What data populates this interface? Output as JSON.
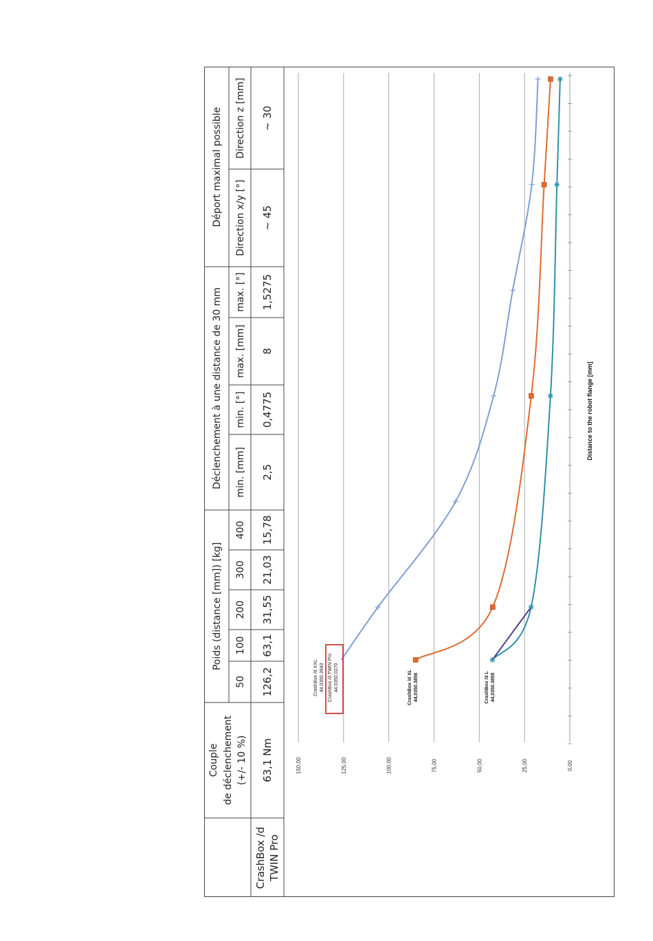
{
  "table": {
    "product_header": "",
    "product_line1": "CrashBox /d",
    "product_line2": "TWIN Pro",
    "torque_header_l1": "Couple",
    "torque_header_l2": "de déclenchement",
    "torque_header_l3": "(+/- 10 %)",
    "torque_value": "63,1 Nm",
    "weight_header": "Poids (distance [mm]) [kg]",
    "weight_distances": [
      "50",
      "100",
      "200",
      "300",
      "400"
    ],
    "weight_values": [
      "126,2",
      "63,1",
      "31,55",
      "21,03",
      "15,78"
    ],
    "trigger_header": "Déclenchement à une distance de 30 mm",
    "trigger_cols": [
      "min. [mm]",
      "min. [°]",
      "max. [mm]",
      "max. [°]"
    ],
    "trigger_values": [
      "2,5",
      "0,4775",
      "8",
      "1,5275"
    ],
    "offset_header": "Déport maximal possible",
    "offset_cols": [
      "Direction x/y [°]",
      "Direction z [mm]"
    ],
    "offset_values": [
      "~ 45",
      "~ 30"
    ]
  },
  "chart_data": {
    "type": "line",
    "xlabel": "Distance to the robot flange [mm]",
    "ylabel": "",
    "ylim": [
      0,
      150
    ],
    "yticks": [
      "0,00",
      "25,00",
      "50,00",
      "75,00",
      "100,00",
      "125,00",
      "150,00"
    ],
    "x": [
      50,
      100,
      200,
      300,
      400,
      500,
      600
    ],
    "series": [
      {
        "name": "CrashBox /d XXL 44.0350.3943",
        "label_lines": [
          "CrashBox /d XXL",
          "44.0350.3943"
        ],
        "values": [
          126.2,
          106,
          63.1,
          42.1,
          31.55,
          21.03,
          17.6
        ],
        "color": "#7f9fd1",
        "marker": "plus"
      },
      {
        "name": "CrashBox /d TWIN Pro 44.0350.0270",
        "label_lines": [
          "CrashBox /d TWIN Pro",
          "44.0350.0270"
        ],
        "highlight_color": "#cc2222"
      },
      {
        "name": "CrashBox /d XL 44,0350.3856",
        "label_lines": [
          "CrashBox /d XL",
          "44,0350.3856"
        ],
        "values": [
          85.2,
          42.6,
          21.3,
          14.2,
          10.65
        ],
        "x": [
          50,
          100,
          300,
          500,
          600
        ],
        "color": "#e06a2e",
        "marker": "square"
      },
      {
        "name": "CrashBox /d L 44,0350.3855",
        "label_lines": [
          "CrashBox /d L",
          "44,0350.3855"
        ],
        "values": [
          42.8,
          21.4,
          10.7,
          7.13,
          5.35
        ],
        "x": [
          50,
          100,
          300,
          500,
          600
        ],
        "color": "#2f8fa6",
        "marker": "star"
      }
    ]
  }
}
